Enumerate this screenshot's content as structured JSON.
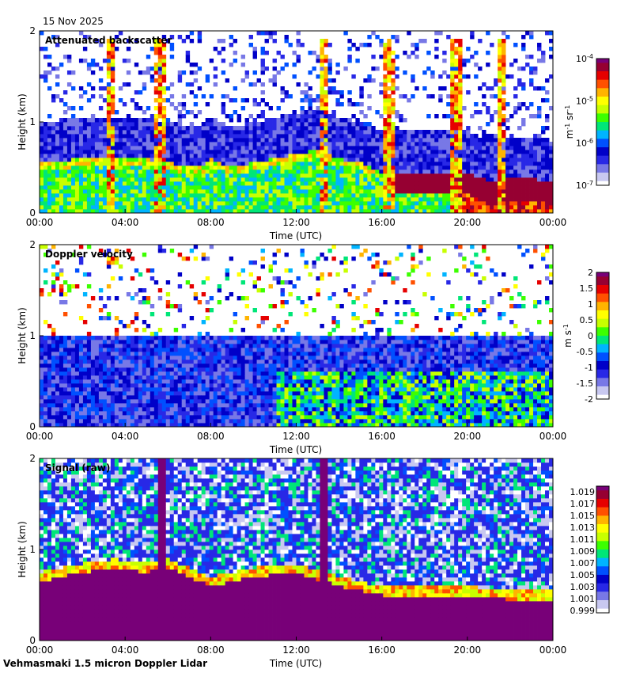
{
  "header": {
    "date": "15 Nov 2025"
  },
  "footer": {
    "instrument": "Vehmasmaki 1.5 micron Doppler Lidar"
  },
  "chart_data": [
    {
      "type": "heatmap",
      "title": "Attenuated backscatter",
      "xlabel": "Time (UTC)",
      "ylabel": "Height (km)",
      "xticks": [
        "00:00",
        "04:00",
        "08:00",
        "12:00",
        "16:00",
        "20:00",
        "00:00"
      ],
      "yticks": [
        "0",
        "1",
        "2"
      ],
      "xlim_hours": [
        0,
        24
      ],
      "ylim_km": [
        0,
        2
      ],
      "colorbar": {
        "unit_base": "m",
        "unit_exp1": "-1",
        "unit_mid": " sr",
        "unit_exp2": "-1",
        "scale": "log",
        "ticks": [
          {
            "base": "10",
            "exp": "-4"
          },
          {
            "base": "10",
            "exp": "-5"
          },
          {
            "base": "10",
            "exp": "-6"
          },
          {
            "base": "10",
            "exp": "-7"
          }
        ]
      },
      "layer_top_km": [
        [
          0,
          0.55
        ],
        [
          2,
          0.6
        ],
        [
          3.5,
          0.6
        ],
        [
          5,
          0.6
        ],
        [
          6,
          0.55
        ],
        [
          7.5,
          0.5
        ],
        [
          8,
          0.6
        ],
        [
          9,
          0.5
        ],
        [
          10,
          0.55
        ],
        [
          11,
          0.6
        ],
        [
          12,
          0.65
        ],
        [
          13,
          0.7
        ],
        [
          14,
          0.6
        ],
        [
          15,
          0.55
        ],
        [
          16,
          0.45
        ],
        [
          17,
          0.45
        ],
        [
          18,
          0.45
        ],
        [
          19,
          0.45
        ],
        [
          20,
          0.45
        ],
        [
          21,
          0.35
        ],
        [
          22,
          0.4
        ],
        [
          24,
          0.35
        ]
      ],
      "plumes_hours": [
        3.3,
        5.6,
        13.3,
        16.3,
        19.5,
        21.6
      ]
    },
    {
      "type": "heatmap",
      "title": "Doppler velocity",
      "xlabel": "Time (UTC)",
      "ylabel": "Height (km)",
      "xticks": [
        "00:00",
        "04:00",
        "08:00",
        "12:00",
        "16:00",
        "20:00",
        "00:00"
      ],
      "yticks": [
        "0",
        "1",
        "2"
      ],
      "xlim_hours": [
        0,
        24
      ],
      "ylim_km": [
        0,
        2
      ],
      "colorbar": {
        "unit_base": "m",
        "unit_mid": " s",
        "unit_exp": "-1",
        "ticks": [
          "2",
          "1.5",
          "1",
          "0.5",
          "0",
          "-0.5",
          "-1",
          "-1.5",
          "-2"
        ],
        "range": [
          -2,
          2
        ]
      }
    },
    {
      "type": "heatmap",
      "title": "Signal (raw)",
      "xlabel": "Time (UTC)",
      "ylabel": "Height (km)",
      "xticks": [
        "00:00",
        "04:00",
        "08:00",
        "12:00",
        "16:00",
        "20:00",
        "00:00"
      ],
      "yticks": [
        "0",
        "1",
        "2"
      ],
      "xlim_hours": [
        0,
        24
      ],
      "ylim_km": [
        0,
        2
      ],
      "colorbar": {
        "ticks": [
          "1.019",
          "1.017",
          "1.015",
          "1.013",
          "1.011",
          "1.009",
          "1.007",
          "1.005",
          "1.003",
          "1.001",
          "0.999"
        ],
        "range": [
          0.999,
          1.019
        ]
      },
      "saturated_top_km": [
        [
          0,
          0.65
        ],
        [
          2,
          0.75
        ],
        [
          3.5,
          0.8
        ],
        [
          5,
          0.75
        ],
        [
          6,
          0.8
        ],
        [
          8,
          0.6
        ],
        [
          10,
          0.7
        ],
        [
          12,
          0.75
        ],
        [
          14,
          0.6
        ],
        [
          16,
          0.5
        ],
        [
          18,
          0.5
        ],
        [
          20,
          0.5
        ],
        [
          22,
          0.45
        ],
        [
          24,
          0.45
        ]
      ]
    }
  ],
  "colors": {
    "ramp": [
      "#ffffff",
      "#c8c8f0",
      "#7878e6",
      "#2828e6",
      "#0000c8",
      "#0050ff",
      "#00b4ff",
      "#00e678",
      "#3cff00",
      "#c8ff00",
      "#ffff00",
      "#ffb400",
      "#ff5000",
      "#e60000",
      "#960032",
      "#780078"
    ]
  }
}
